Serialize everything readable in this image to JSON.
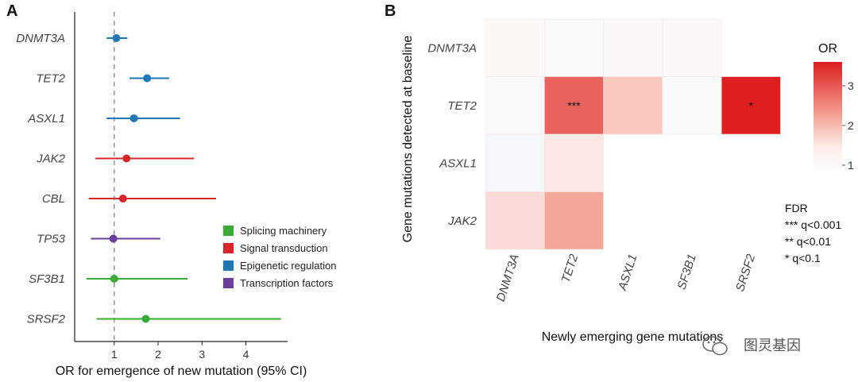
{
  "chart_data": [
    {
      "type": "forest",
      "panel": "A",
      "xlabel": "OR for emergence of new mutation (95% CI)",
      "xlim": [
        0.1,
        4.95
      ],
      "xticks": [
        "1",
        "2",
        "3",
        "4"
      ],
      "reference_line": 1,
      "colors": {
        "Splicing machinery": "#3aaa35",
        "Signal transduction": "#d7262b",
        "Epigenetic regulation": "#1f78b4",
        "Transcription factors": "#6a3d9a"
      },
      "legend": [
        "Splicing machinery",
        "Signal transduction",
        "Epigenetic regulation",
        "Transcription factors"
      ],
      "rows": [
        {
          "gene": "DNMT3A",
          "or": 1.05,
          "lo": 0.83,
          "hi": 1.3,
          "group": "Epigenetic regulation"
        },
        {
          "gene": "TET2",
          "or": 1.75,
          "lo": 1.35,
          "hi": 2.25,
          "group": "Epigenetic regulation"
        },
        {
          "gene": "ASXL1",
          "or": 1.45,
          "lo": 0.83,
          "hi": 2.5,
          "group": "Epigenetic regulation"
        },
        {
          "gene": "JAK2",
          "or": 1.28,
          "lo": 0.57,
          "hi": 2.82,
          "group": "Signal transduction"
        },
        {
          "gene": "CBL",
          "or": 1.2,
          "lo": 0.42,
          "hi": 3.32,
          "group": "Signal transduction"
        },
        {
          "gene": "TP53",
          "or": 0.98,
          "lo": 0.47,
          "hi": 2.05,
          "group": "Transcription factors"
        },
        {
          "gene": "SF3B1",
          "or": 1.0,
          "lo": 0.37,
          "hi": 2.67,
          "group": "Splicing machinery"
        },
        {
          "gene": "SRSF2",
          "or": 1.72,
          "lo": 0.6,
          "hi": 4.8,
          "group": "Splicing machinery"
        }
      ]
    },
    {
      "type": "heatmap",
      "panel": "B",
      "xlabel": "Newly emerging gene mutations",
      "ylabel": "Gene mutations detected at baseline",
      "rows": [
        "DNMT3A",
        "TET2",
        "ASXL1",
        "JAK2"
      ],
      "cols": [
        "DNMT3A",
        "TET2",
        "ASXL1",
        "SF3B1",
        "SRSF2"
      ],
      "values": [
        [
          1.12,
          1.03,
          1.06,
          1.08,
          null
        ],
        [
          0.98,
          2.9,
          1.85,
          1.0,
          3.6
        ],
        [
          0.92,
          1.5,
          null,
          null,
          null
        ],
        [
          1.65,
          2.2,
          null,
          null,
          null
        ]
      ],
      "annotations": [
        [
          "",
          "",
          "",
          "",
          ""
        ],
        [
          "",
          "***",
          "",
          "",
          "*"
        ],
        [
          "",
          "",
          "",
          "",
          ""
        ],
        [
          "",
          "",
          "",
          "",
          ""
        ]
      ],
      "colorbar": {
        "title": "OR",
        "ticks": [
          "1",
          "2",
          "3"
        ],
        "min": 0.9,
        "max": 3.6
      },
      "fdr_legend": [
        "FDR",
        "*** q<0.001",
        "** q<0.01",
        "* q<0.1"
      ]
    }
  ],
  "watermark": {
    "text": "图灵基因"
  }
}
